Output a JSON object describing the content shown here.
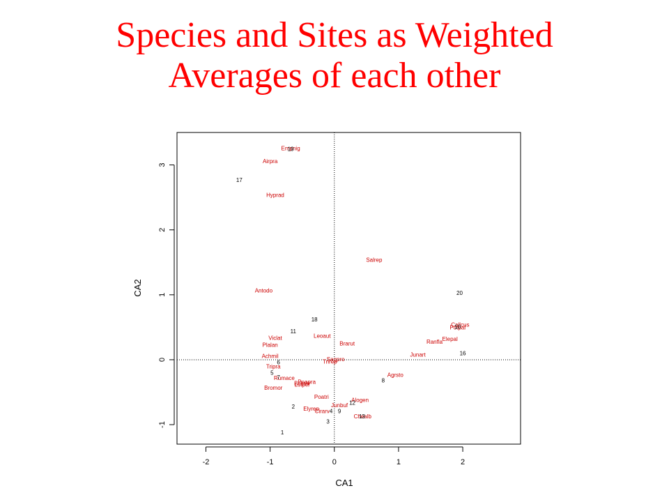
{
  "title": {
    "line1": "Species and Sites as Weighted",
    "line2": "Averages of each other"
  },
  "colors": {
    "title": "#ff0000",
    "species": "#cc0000",
    "sites": "#000000"
  },
  "chart_data": {
    "type": "scatter",
    "xlabel": "CA1",
    "ylabel": "CA2",
    "xlim": [
      -2.45,
      2.9
    ],
    "ylim": [
      -1.3,
      3.5
    ],
    "xticks": [
      -2,
      -1,
      0,
      1,
      2
    ],
    "yticks": [
      -1,
      0,
      1,
      2,
      3
    ],
    "reference_lines": {
      "x": 0,
      "y": 0,
      "style": "dotted"
    },
    "grid": false,
    "series": [
      {
        "points": [
          {
            "label": "Empnig",
            "x": -0.68,
            "y": 3.26
          },
          {
            "label": "Airpra",
            "x": -1.0,
            "y": 3.06
          },
          {
            "label": "Hyprad",
            "x": -0.92,
            "y": 2.54
          },
          {
            "label": "Salrep",
            "x": 0.62,
            "y": 1.54
          },
          {
            "label": "Antodo",
            "x": -1.1,
            "y": 1.07
          },
          {
            "label": "Callcus",
            "x": 1.96,
            "y": 0.54
          },
          {
            "label": "Potpal",
            "x": 1.92,
            "y": 0.5
          },
          {
            "label": "Viclat",
            "x": -0.92,
            "y": 0.34
          },
          {
            "label": "Leoaut",
            "x": -0.19,
            "y": 0.37
          },
          {
            "label": "Elepal",
            "x": 1.8,
            "y": 0.32
          },
          {
            "label": "Ranfla",
            "x": 1.56,
            "y": 0.28
          },
          {
            "label": "Brarut",
            "x": 0.2,
            "y": 0.25
          },
          {
            "label": "Plalan",
            "x": -1.0,
            "y": 0.23
          },
          {
            "label": "Junart",
            "x": 1.3,
            "y": 0.08
          },
          {
            "label": "Achmil",
            "x": -1.0,
            "y": 0.06
          },
          {
            "label": "Sagpro",
            "x": 0.02,
            "y": 0.01
          },
          {
            "label": "Trirep",
            "x": -0.07,
            "y": -0.03
          },
          {
            "label": "Tripra",
            "x": -0.95,
            "y": -0.1
          },
          {
            "label": "Agrsto",
            "x": 0.95,
            "y": -0.23
          },
          {
            "label": "Rumace",
            "x": -0.78,
            "y": -0.28
          },
          {
            "label": "Belper",
            "x": -0.5,
            "y": -0.36
          },
          {
            "label": "Poapra",
            "x": -0.43,
            "y": -0.34
          },
          {
            "label": "Lolper",
            "x": -0.5,
            "y": -0.38
          },
          {
            "label": "Bromor",
            "x": -0.95,
            "y": -0.43
          },
          {
            "label": "Poatri",
            "x": -0.2,
            "y": -0.57
          },
          {
            "label": "Alogen",
            "x": 0.4,
            "y": -0.62
          },
          {
            "label": "Junbuf",
            "x": 0.08,
            "y": -0.7
          },
          {
            "label": "Elyrep",
            "x": -0.36,
            "y": -0.75
          },
          {
            "label": "Cirarv",
            "x": -0.19,
            "y": -0.79
          },
          {
            "label": "Chealb",
            "x": 0.44,
            "y": -0.87
          }
        ]
      },
      {
        "points": [
          {
            "label": "19",
            "x": -0.68,
            "y": 3.25
          },
          {
            "label": "17",
            "x": -1.48,
            "y": 2.77
          },
          {
            "label": "20",
            "x": 1.95,
            "y": 1.03
          },
          {
            "label": "18",
            "x": -0.31,
            "y": 0.62
          },
          {
            "label": "10",
            "x": 1.92,
            "y": 0.51
          },
          {
            "label": "11",
            "x": -0.64,
            "y": 0.44
          },
          {
            "label": "16",
            "x": 2.0,
            "y": 0.1
          },
          {
            "label": "6",
            "x": -0.87,
            "y": -0.04
          },
          {
            "label": "5",
            "x": -0.97,
            "y": -0.2
          },
          {
            "label": "7",
            "x": -0.87,
            "y": -0.27
          },
          {
            "label": "8",
            "x": 0.76,
            "y": -0.32
          },
          {
            "label": "12",
            "x": 0.28,
            "y": -0.66
          },
          {
            "label": "2",
            "x": -0.64,
            "y": -0.72
          },
          {
            "label": "4",
            "x": -0.05,
            "y": -0.79
          },
          {
            "label": "9",
            "x": 0.08,
            "y": -0.79
          },
          {
            "label": "13",
            "x": 0.43,
            "y": -0.87
          },
          {
            "label": "3",
            "x": -0.1,
            "y": -0.95
          },
          {
            "label": "1",
            "x": -0.81,
            "y": -1.12
          }
        ]
      }
    ]
  }
}
